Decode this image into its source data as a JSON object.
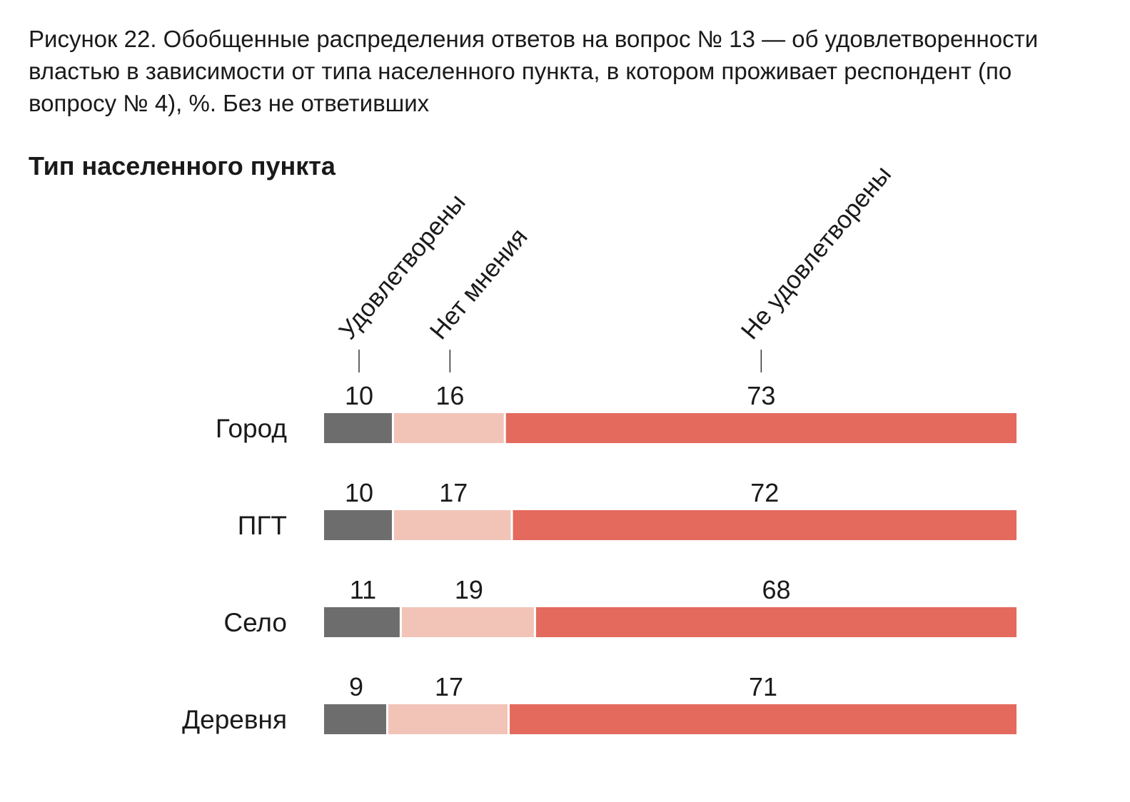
{
  "caption": "Рисунок 22. Обобщенные распределения ответов на вопрос № 13 — об удовлетво­ренности властью в зависимости от типа населенного пункта, в котором проживает респондент (по вопросу № 4), %. Без не ответивших",
  "chart_data": {
    "type": "bar",
    "orientation": "horizontal",
    "stacked": true,
    "title": "Тип населенного пункта",
    "categories": [
      "Город",
      "ПГТ",
      "Село",
      "Деревня"
    ],
    "series": [
      {
        "name": "Удовлетворены",
        "values": [
          10,
          10,
          11,
          9
        ],
        "color": "#6d6d6d"
      },
      {
        "name": "Нет мнения",
        "values": [
          16,
          17,
          19,
          17
        ],
        "color": "#f2c4b8"
      },
      {
        "name": "Не удовлетворены",
        "values": [
          73,
          72,
          68,
          71
        ],
        "color": "#e46a5d"
      }
    ],
    "legend_position": "top, rotated labels",
    "grid": false
  }
}
